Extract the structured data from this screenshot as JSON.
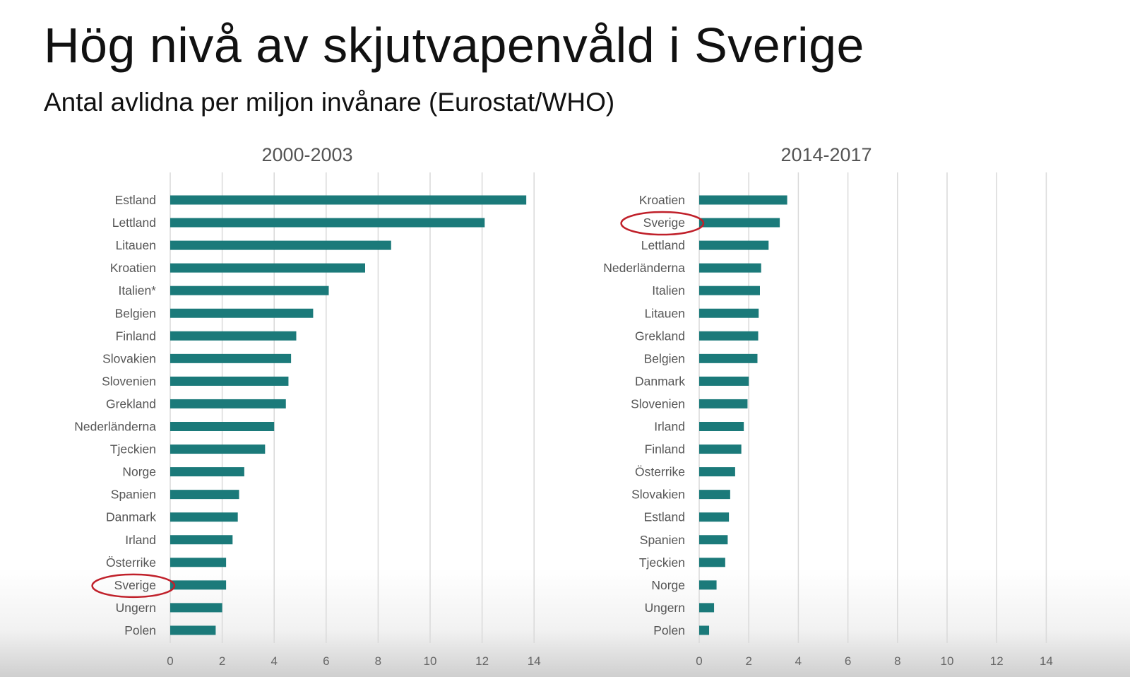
{
  "title": "Hög nivå av skjutvapenvåld i Sverige",
  "subtitle": "Antal avlidna per miljon invånare (Eurostat/WHO)",
  "colors": {
    "bar": "#1b7a7a",
    "highlight": "#c0202a"
  },
  "chart_data": [
    {
      "type": "bar",
      "orientation": "horizontal",
      "title": "2000-2003",
      "categories": [
        "Estland",
        "Lettland",
        "Litauen",
        "Kroatien",
        "Italien*",
        "Belgien",
        "Finland",
        "Slovakien",
        "Slovenien",
        "Grekland",
        "Nederländerna",
        "Tjeckien",
        "Norge",
        "Spanien",
        "Danmark",
        "Irland",
        "Österrike",
        "Sverige",
        "Ungern",
        "Polen"
      ],
      "values": [
        13.7,
        12.1,
        8.5,
        7.5,
        6.1,
        5.5,
        4.85,
        4.65,
        4.55,
        4.45,
        4.0,
        3.65,
        2.85,
        2.65,
        2.6,
        2.4,
        2.15,
        2.15,
        2.0,
        1.75
      ],
      "xlim": [
        0,
        14
      ],
      "xticks": [
        "0",
        "2",
        "4",
        "6",
        "8",
        "10",
        "12",
        "14"
      ],
      "grid": true,
      "highlight": "Sverige"
    },
    {
      "type": "bar",
      "orientation": "horizontal",
      "title": "2014-2017",
      "categories": [
        "Kroatien",
        "Sverige",
        "Lettland",
        "Nederländerna",
        "Italien",
        "Litauen",
        "Grekland",
        "Belgien",
        "Danmark",
        "Slovenien",
        "Irland",
        "Finland",
        "Österrike",
        "Slovakien",
        "Estland",
        "Spanien",
        "Tjeckien",
        "Norge",
        "Ungern",
        "Polen"
      ],
      "values": [
        3.55,
        3.25,
        2.8,
        2.5,
        2.45,
        2.4,
        2.38,
        2.35,
        2.0,
        1.95,
        1.8,
        1.7,
        1.45,
        1.25,
        1.2,
        1.15,
        1.05,
        0.7,
        0.6,
        0.4
      ],
      "xlim": [
        0,
        14
      ],
      "xticks": [
        "0",
        "2",
        "4",
        "6",
        "8",
        "10",
        "12",
        "14"
      ],
      "grid": true,
      "highlight": "Sverige"
    }
  ]
}
